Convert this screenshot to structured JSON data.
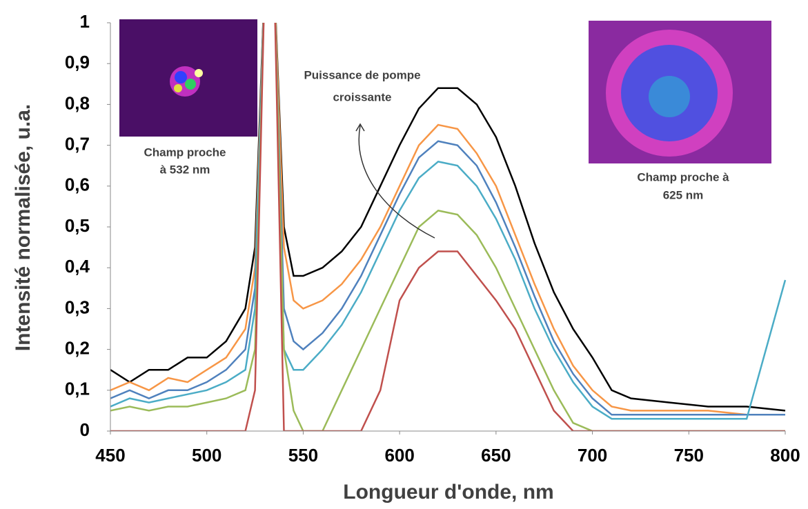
{
  "chart_data": {
    "type": "line",
    "x_label": "Longueur d'onde, nm",
    "y_label": "Intensité normalisée, u.a.",
    "xlim": [
      450,
      800
    ],
    "ylim": [
      0,
      1
    ],
    "xticks": [
      450,
      500,
      550,
      600,
      650,
      700,
      750,
      800
    ],
    "yticks": [
      0,
      {
        "value": 0.1,
        "label": "0,1"
      },
      {
        "value": 0.2,
        "label": "0,2"
      },
      {
        "value": 0.3,
        "label": "0,3"
      },
      {
        "value": 0.4,
        "label": "0,4"
      },
      {
        "value": 0.5,
        "label": "0,5"
      },
      {
        "value": 0.6,
        "label": "0,6"
      },
      {
        "value": 0.7,
        "label": "0,7"
      },
      {
        "value": 0.8,
        "label": "0,8"
      },
      {
        "value": 0.9,
        "label": "0,9"
      },
      1
    ],
    "x": [
      450,
      460,
      470,
      480,
      490,
      500,
      510,
      520,
      525,
      530,
      535,
      540,
      545,
      550,
      560,
      570,
      580,
      590,
      600,
      610,
      620,
      630,
      640,
      650,
      660,
      670,
      680,
      690,
      700,
      710,
      720,
      740,
      760,
      780,
      800
    ],
    "series": [
      {
        "color": "#000000",
        "values": [
          0.15,
          0.12,
          0.15,
          0.15,
          0.18,
          0.18,
          0.22,
          0.3,
          0.45,
          1.1,
          1.1,
          0.5,
          0.38,
          0.38,
          0.4,
          0.44,
          0.5,
          0.6,
          0.7,
          0.79,
          0.84,
          0.84,
          0.8,
          0.72,
          0.6,
          0.46,
          0.34,
          0.25,
          0.18,
          0.1,
          0.08,
          0.07,
          0.06,
          0.06,
          0.05
        ]
      },
      {
        "color": "#f79646",
        "values": [
          0.1,
          0.12,
          0.1,
          0.13,
          0.12,
          0.15,
          0.18,
          0.25,
          0.4,
          1.1,
          1.1,
          0.45,
          0.32,
          0.3,
          0.32,
          0.36,
          0.42,
          0.5,
          0.6,
          0.7,
          0.75,
          0.74,
          0.68,
          0.6,
          0.48,
          0.36,
          0.25,
          0.16,
          0.1,
          0.06,
          0.05,
          0.05,
          0.05,
          0.04,
          0.04
        ]
      },
      {
        "color": "#4f81bd",
        "values": [
          0.08,
          0.1,
          0.08,
          0.1,
          0.1,
          0.12,
          0.15,
          0.2,
          0.35,
          1.1,
          1.1,
          0.3,
          0.22,
          0.2,
          0.24,
          0.3,
          0.38,
          0.48,
          0.58,
          0.67,
          0.71,
          0.7,
          0.65,
          0.56,
          0.45,
          0.33,
          0.22,
          0.14,
          0.08,
          0.04,
          0.04,
          0.04,
          0.04,
          0.04,
          0.04
        ]
      },
      {
        "color": "#4bacc6",
        "values": [
          0.06,
          0.08,
          0.07,
          0.08,
          0.09,
          0.1,
          0.12,
          0.15,
          0.3,
          1.1,
          1.1,
          0.2,
          0.15,
          0.15,
          0.2,
          0.26,
          0.34,
          0.44,
          0.54,
          0.62,
          0.66,
          0.65,
          0.6,
          0.52,
          0.42,
          0.3,
          0.2,
          0.12,
          0.06,
          0.03,
          0.03,
          0.03,
          0.03,
          0.03,
          0.37
        ]
      },
      {
        "color": "#9bbb59",
        "values": [
          0.05,
          0.06,
          0.05,
          0.06,
          0.06,
          0.07,
          0.08,
          0.1,
          0.2,
          1.1,
          1.1,
          0.2,
          0.05,
          0,
          0,
          0.1,
          0.2,
          0.3,
          0.4,
          0.5,
          0.54,
          0.53,
          0.48,
          0.4,
          0.3,
          0.2,
          0.1,
          0.02,
          0,
          0,
          0,
          0,
          0,
          0,
          0
        ]
      },
      {
        "color": "#c0504d",
        "values": [
          0,
          0,
          0,
          0,
          0,
          0,
          0,
          0,
          0.1,
          1.1,
          1.1,
          0,
          0,
          0,
          0,
          0,
          0,
          0.1,
          0.32,
          0.4,
          0.44,
          0.44,
          0.38,
          0.32,
          0.25,
          0.15,
          0.05,
          0,
          0,
          0,
          0,
          0,
          0,
          0,
          0
        ]
      }
    ],
    "annotations": [
      "Puissance de pompe",
      "croissante",
      "Champ proche",
      "à 532 nm",
      "Champ proche à",
      "625 nm"
    ]
  }
}
